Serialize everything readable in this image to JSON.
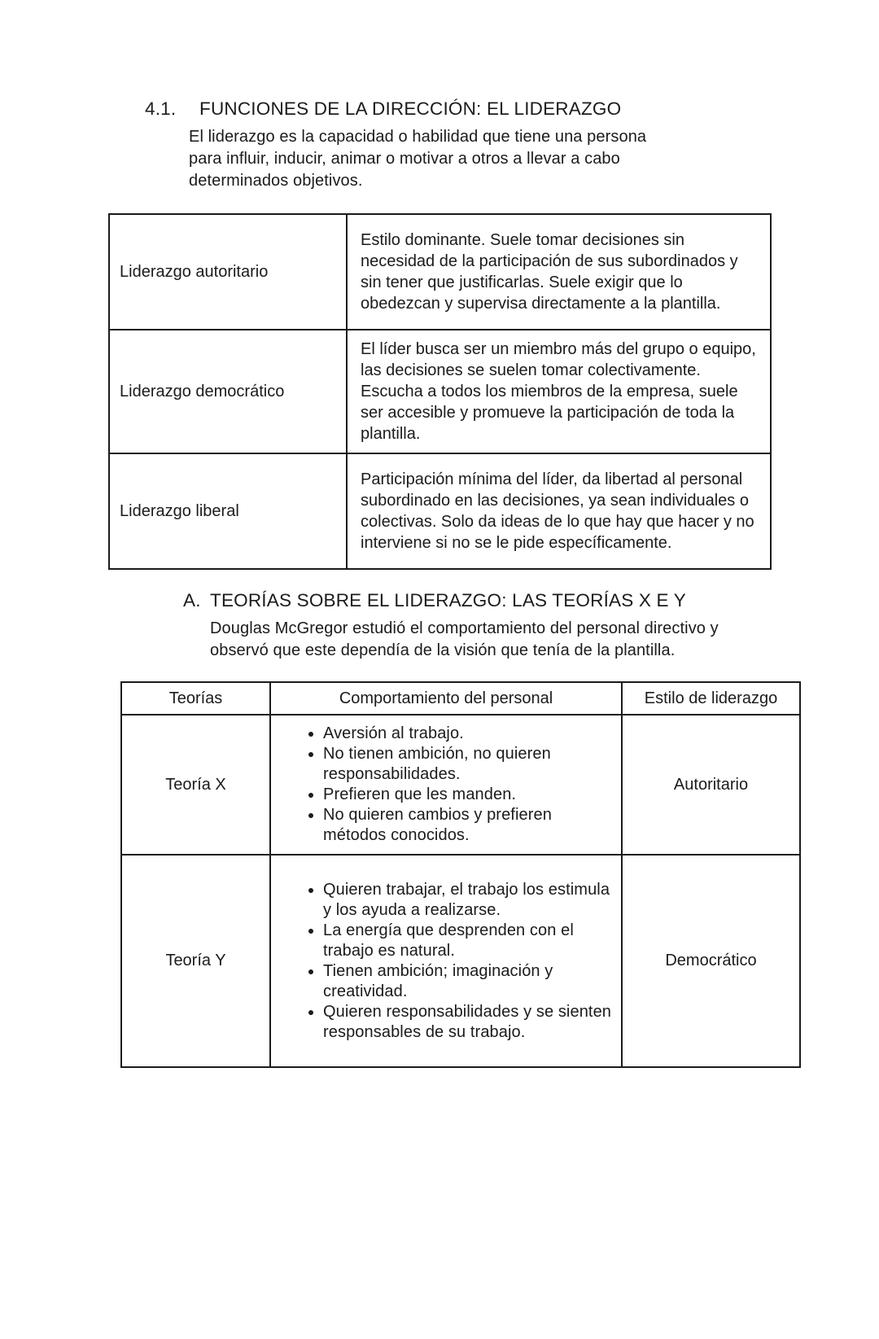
{
  "section": {
    "number": "4.1.",
    "title": "FUNCIONES DE LA DIRECCIÓN: EL LIDERAZGO",
    "intro": "El liderazgo es la capacidad o habilidad que tiene una persona para influir, inducir, animar o motivar a otros a llevar a cabo determinados objetivos."
  },
  "leadership_table": {
    "rows": [
      {
        "style": "Liderazgo autoritario",
        "description": "Estilo dominante. Suele tomar decisiones sin necesidad de la participación de sus subordinados y sin tener que justificarlas. Suele exigir que lo obedezcan y supervisa directamente a la plantilla."
      },
      {
        "style": "Liderazgo democrático",
        "description": "El líder busca ser un miembro más del grupo o equipo, las decisiones se suelen tomar colectivamente. Escucha a todos los miembros de la empresa, suele ser accesible y promueve la participación de toda la plantilla."
      },
      {
        "style": "Liderazgo liberal",
        "description": "Participación mínima del líder, da libertad al personal subordinado en las decisiones, ya sean individuales o colectivas. Solo da ideas de lo que hay que hacer y no interviene si no se le pide específicamente."
      }
    ]
  },
  "subsection": {
    "letter": "A.",
    "title": "TEORÍAS SOBRE EL LIDERAZGO: LAS TEORÍAS X E Y",
    "intro": "Douglas McGregor estudió el comportamiento del personal directivo y observó que este dependía de la visión que tenía de la plantilla."
  },
  "theories_table": {
    "headers": [
      "Teorías",
      "Comportamiento del personal",
      "Estilo de liderazgo"
    ],
    "rows": [
      {
        "theory": "Teoría X",
        "behaviors": [
          "Aversión al trabajo.",
          "No tienen ambición, no quieren responsabilidades.",
          "Prefieren que les manden.",
          "No quieren cambios y prefieren métodos conocidos."
        ],
        "style": "Autoritario"
      },
      {
        "theory": "Teoría Y",
        "behaviors": [
          "Quieren trabajar, el trabajo los estimula y los ayuda a realizarse.",
          "La energía que desprenden con el trabajo es natural.",
          "Tienen ambición; imaginación y creatividad.",
          "Quieren responsabilidades y se sienten responsables de su trabajo."
        ],
        "style": "Democrático"
      }
    ]
  },
  "colors": {
    "text": "#1b1b1b",
    "border": "#1b1b1b",
    "background": "#ffffff"
  }
}
